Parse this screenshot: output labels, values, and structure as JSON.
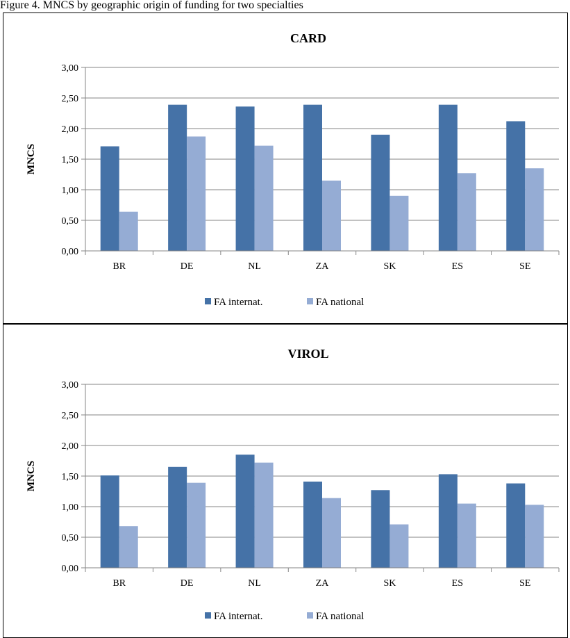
{
  "caption": "Figure 4. MNCS by geographic origin of funding for two specialties",
  "colors": {
    "series1": "#4572a7",
    "series2": "#95acd4",
    "axis": "#868686",
    "grid": "#868686"
  },
  "chart_data": [
    {
      "type": "bar",
      "title": "CARD",
      "xlabel": "",
      "ylabel": "MNCS",
      "ylim": [
        0,
        3
      ],
      "yticks": [
        "0,00",
        "0,50",
        "1,00",
        "1,50",
        "2,00",
        "2,50",
        "3,00"
      ],
      "grid": true,
      "legend": "bottom",
      "categories": [
        "BR",
        "DE",
        "NL",
        "ZA",
        "SK",
        "ES",
        "SE"
      ],
      "series": [
        {
          "name": "FA internat.",
          "values": [
            1.71,
            2.39,
            2.36,
            2.39,
            1.9,
            2.39,
            2.12
          ]
        },
        {
          "name": "FA national",
          "values": [
            0.64,
            1.87,
            1.72,
            1.15,
            0.9,
            1.27,
            1.35
          ]
        }
      ]
    },
    {
      "type": "bar",
      "title": "VIROL",
      "xlabel": "",
      "ylabel": "MNCS",
      "ylim": [
        0,
        3
      ],
      "yticks": [
        "0,00",
        "0,50",
        "1,00",
        "1,50",
        "2,00",
        "2,50",
        "3,00"
      ],
      "grid": true,
      "legend": "bottom",
      "categories": [
        "BR",
        "DE",
        "NL",
        "ZA",
        "SK",
        "ES",
        "SE"
      ],
      "series": [
        {
          "name": "FA internat.",
          "values": [
            1.51,
            1.65,
            1.85,
            1.41,
            1.27,
            1.53,
            1.38
          ]
        },
        {
          "name": "FA national",
          "values": [
            0.68,
            1.39,
            1.72,
            1.14,
            0.71,
            1.05,
            1.03
          ]
        }
      ]
    }
  ]
}
